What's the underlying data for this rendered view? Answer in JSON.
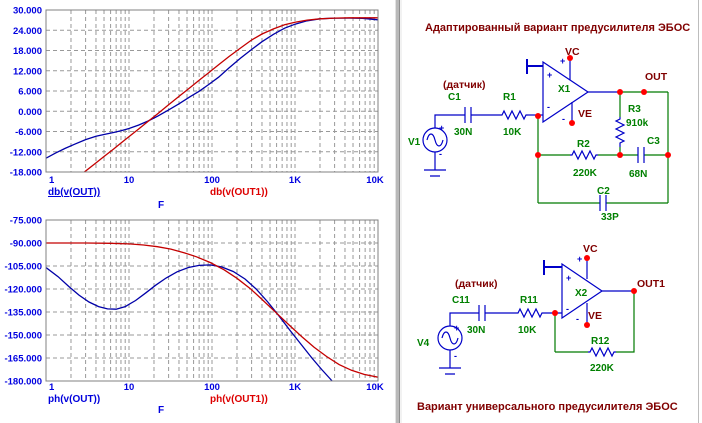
{
  "sym": {
    "plus": "+",
    "minus": "-"
  },
  "charts": [
    {
      "name": "magnitude",
      "type": "line",
      "x_scale": "log",
      "x_range": [
        1,
        10000
      ],
      "y_range": [
        -18,
        30
      ],
      "xlabel": "F",
      "y_ticks": [
        30,
        24,
        18,
        12,
        6,
        0,
        -6,
        -12,
        -18
      ],
      "y_tick_labels": [
        "30.000",
        "24.000",
        "18.000",
        "12.000",
        "6.000",
        "0.000",
        "-6.000",
        "-12.000",
        "-18.000"
      ],
      "x_ticks": [
        {
          "f": 1,
          "label": "1"
        },
        {
          "f": 10,
          "label": "10"
        },
        {
          "f": 100,
          "label": "100"
        },
        {
          "f": 1000,
          "label": "1K"
        },
        {
          "f": 10000,
          "label": "10K"
        }
      ],
      "grid": true,
      "legend": [
        {
          "label": "db(v(OUT))",
          "color": "#0000dd",
          "underline": true
        },
        {
          "label": "db(v(OUT1))",
          "color": "#dd0000",
          "underline": false
        }
      ],
      "series": [
        {
          "name": "db(v(OUT))",
          "color": "#0000a8",
          "points": [
            [
              1,
              -13.9
            ],
            [
              1.3,
              -12.4
            ],
            [
              1.7,
              -11.0
            ],
            [
              2.2,
              -9.8
            ],
            [
              3,
              -8.4
            ],
            [
              4,
              -7.4
            ],
            [
              5,
              -6.9
            ],
            [
              6.5,
              -6.3
            ],
            [
              8,
              -5.8
            ],
            [
              10,
              -5.1
            ],
            [
              13,
              -4.1
            ],
            [
              17,
              -2.9
            ],
            [
              22,
              -1.5
            ],
            [
              30,
              0.4
            ],
            [
              40,
              2.2
            ],
            [
              55,
              4.4
            ],
            [
              70,
              5.9
            ],
            [
              90,
              7.8
            ],
            [
              120,
              10.1
            ],
            [
              160,
              12.8
            ],
            [
              220,
              15.7
            ],
            [
              300,
              18.3
            ],
            [
              400,
              20.6
            ],
            [
              550,
              22.8
            ],
            [
              750,
              24.6
            ],
            [
              1000,
              25.8
            ],
            [
              1400,
              26.8
            ],
            [
              2000,
              27.4
            ],
            [
              3000,
              27.6
            ],
            [
              4500,
              27.6
            ],
            [
              6500,
              27.5
            ],
            [
              10000,
              27.1
            ]
          ]
        },
        {
          "name": "db(v(OUT1))",
          "color": "#c40000",
          "points": [
            [
              2.6,
              -19.5
            ],
            [
              2.9,
              -18
            ],
            [
              4,
              -15.3
            ],
            [
              5,
              -13.4
            ],
            [
              6.5,
              -11.2
            ],
            [
              8,
              -9.4
            ],
            [
              10,
              -7.5
            ],
            [
              13,
              -5.3
            ],
            [
              17,
              -3.0
            ],
            [
              22,
              -0.8
            ],
            [
              30,
              1.9
            ],
            [
              40,
              4.4
            ],
            [
              55,
              7.1
            ],
            [
              70,
              9.2
            ],
            [
              90,
              11.3
            ],
            [
              120,
              13.8
            ],
            [
              160,
              16.2
            ],
            [
              220,
              18.7
            ],
            [
              300,
              21.1
            ],
            [
              400,
              22.9
            ],
            [
              550,
              24.4
            ],
            [
              750,
              25.6
            ],
            [
              1000,
              26.4
            ],
            [
              1400,
              27.0
            ],
            [
              2000,
              27.4
            ],
            [
              3000,
              27.6
            ],
            [
              4500,
              27.7
            ],
            [
              6500,
              27.7
            ],
            [
              10000,
              27.7
            ]
          ]
        }
      ]
    },
    {
      "name": "phase",
      "type": "line",
      "x_scale": "log",
      "x_range": [
        1,
        10000
      ],
      "y_range": [
        -180,
        -75
      ],
      "xlabel": "F",
      "y_ticks": [
        -75,
        -90,
        -105,
        -120,
        -135,
        -150,
        -165,
        -180
      ],
      "y_tick_labels": [
        "-75.000",
        "-90.000",
        "-105.000",
        "-120.000",
        "-135.000",
        "-150.000",
        "-165.000",
        "-180.000"
      ],
      "x_ticks": [
        {
          "f": 1,
          "label": "1"
        },
        {
          "f": 10,
          "label": "10"
        },
        {
          "f": 100,
          "label": "100"
        },
        {
          "f": 1000,
          "label": "1K"
        },
        {
          "f": 10000,
          "label": "10K"
        }
      ],
      "grid": true,
      "legend": [
        {
          "label": "ph(v(OUT))",
          "color": "#0000dd",
          "underline": false
        },
        {
          "label": "ph(v(OUT1))",
          "color": "#dd0000",
          "underline": false
        }
      ],
      "series": [
        {
          "name": "ph(v(OUT))",
          "color": "#0000a8",
          "points": [
            [
              1,
              -106
            ],
            [
              1.4,
              -112
            ],
            [
              1.9,
              -118.5
            ],
            [
              2.5,
              -124
            ],
            [
              3.3,
              -128.5
            ],
            [
              4.3,
              -131.5
            ],
            [
              5.5,
              -133
            ],
            [
              7,
              -133.2
            ],
            [
              9,
              -131.5
            ],
            [
              12,
              -127.5
            ],
            [
              16,
              -122.5
            ],
            [
              21,
              -117.5
            ],
            [
              28,
              -112.8
            ],
            [
              38,
              -108.8
            ],
            [
              52,
              -106
            ],
            [
              70,
              -104.6
            ],
            [
              95,
              -104.3
            ],
            [
              130,
              -105.6
            ],
            [
              180,
              -108.6
            ],
            [
              250,
              -113.5
            ],
            [
              340,
              -120
            ],
            [
              470,
              -128.5
            ],
            [
              640,
              -137.5
            ],
            [
              870,
              -147
            ],
            [
              1200,
              -156.5
            ],
            [
              1600,
              -165
            ],
            [
              2100,
              -172.5
            ],
            [
              2700,
              -179
            ],
            [
              3100,
              -183
            ]
          ]
        },
        {
          "name": "ph(v(OUT1))",
          "color": "#c40000",
          "points": [
            [
              1,
              -90
            ],
            [
              3,
              -90
            ],
            [
              6,
              -90.2
            ],
            [
              10,
              -90.6
            ],
            [
              15,
              -91.3
            ],
            [
              22,
              -92.4
            ],
            [
              32,
              -94
            ],
            [
              46,
              -96.3
            ],
            [
              65,
              -99
            ],
            [
              95,
              -102.7
            ],
            [
              140,
              -107.5
            ],
            [
              200,
              -113
            ],
            [
              290,
              -119.8
            ],
            [
              420,
              -127.8
            ],
            [
              600,
              -135.8
            ],
            [
              850,
              -143.5
            ],
            [
              1200,
              -151
            ],
            [
              1700,
              -158
            ],
            [
              2400,
              -164
            ],
            [
              3400,
              -169.3
            ],
            [
              4800,
              -173
            ],
            [
              6800,
              -175.7
            ],
            [
              10000,
              -177.5
            ]
          ]
        }
      ]
    }
  ],
  "circuits": {
    "top": {
      "title": "Адаптированный вариант предусилителя ЭБОС",
      "sensor": "(датчик)",
      "source": "V1",
      "c1": "C1",
      "c1_val": "30N",
      "r1": "R1",
      "r1_val": "10K",
      "opamp": "X1",
      "vc": "VC",
      "ve": "VE",
      "out": "OUT",
      "r3": "R3",
      "r3_val": "910k",
      "r2": "R2",
      "r2_val": "220K",
      "c3": "C3",
      "c3_val": "68N",
      "c2": "C2",
      "c2_val": "33P"
    },
    "bottom": {
      "title": "Вариант универсального предусилителя ЭБОС",
      "sensor": "(датчик)",
      "source": "V4",
      "c11": "C11",
      "c11_val": "30N",
      "r11": "R11",
      "r11_val": "10K",
      "opamp": "X2",
      "vc": "VC",
      "ve": "VE",
      "out": "OUT1",
      "r12": "R12",
      "r12_val": "220K"
    }
  }
}
